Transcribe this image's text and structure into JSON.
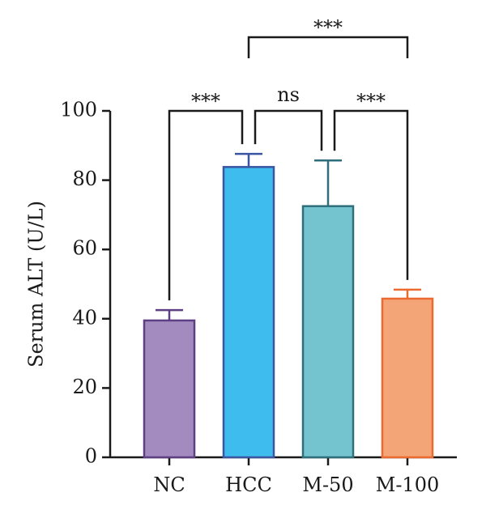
{
  "chart_data": {
    "type": "bar",
    "title": "",
    "xlabel": "",
    "ylabel": "Serum ALT (U/L)",
    "ylim": [
      0,
      100
    ],
    "yticks": [
      0,
      20,
      40,
      60,
      80,
      100
    ],
    "categories": [
      "NC",
      "HCC",
      "M-50",
      "M-100"
    ],
    "values": [
      39.5,
      83.8,
      72.5,
      45.8
    ],
    "errors": [
      3.0,
      3.8,
      13.2,
      2.6
    ],
    "colors": {
      "fill": [
        "#a38bc0",
        "#3fbcee",
        "#74c4cf",
        "#f4a577"
      ],
      "stroke": [
        "#5d3f84",
        "#3a55a2",
        "#2f6f7c",
        "#ec6a2f"
      ]
    },
    "grid": false,
    "legend": "none",
    "significance": [
      {
        "from": "NC",
        "to": "HCC",
        "label": "***"
      },
      {
        "from": "HCC",
        "to": "M-50",
        "label": "ns"
      },
      {
        "from": "M-50",
        "to": "M-100",
        "label": "***"
      },
      {
        "from": "HCC",
        "to": "M-100",
        "label": "***"
      }
    ]
  }
}
